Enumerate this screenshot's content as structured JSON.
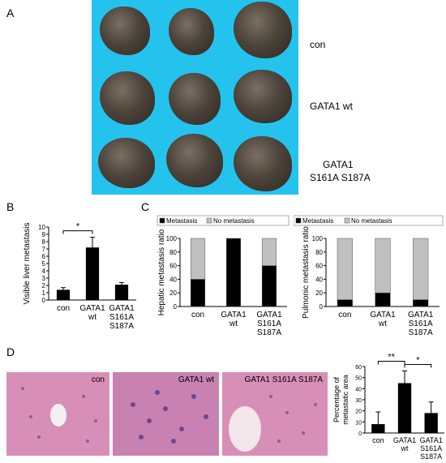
{
  "panels": {
    "A": "A",
    "B": "B",
    "C": "C",
    "D": "D"
  },
  "panelA": {
    "groups": [
      "con",
      "GATA1 wt",
      "GATA1",
      "S161A S187A"
    ]
  },
  "chart_data": [
    {
      "id": "B",
      "type": "bar",
      "ylabel": "Visible liver metastasis",
      "ylim": [
        0,
        10
      ],
      "yticks": [
        0,
        1,
        2,
        3,
        4,
        5,
        6,
        7,
        8,
        9,
        10
      ],
      "categories": [
        [
          "con"
        ],
        [
          "GATA1",
          "wt"
        ],
        [
          "GATA1",
          "S161A",
          "S187A"
        ]
      ],
      "values": [
        1.4,
        7.2,
        2.1
      ],
      "errors": [
        0.3,
        1.4,
        0.3
      ],
      "significance": [
        {
          "from": 0,
          "to": 1,
          "label": "*"
        }
      ]
    },
    {
      "id": "C1",
      "type": "bar",
      "stacked": true,
      "ylabel": "Hepatic metastasis ratio",
      "ylim": [
        0,
        100
      ],
      "yticks": [
        0,
        20,
        40,
        60,
        80,
        100
      ],
      "categories": [
        [
          "con"
        ],
        [
          "GATA1",
          "wt"
        ],
        [
          "GATA1",
          "S161A",
          "S187A"
        ]
      ],
      "legend": [
        "Metastasis",
        "No metastasis"
      ],
      "series": [
        {
          "name": "Metastasis",
          "values": [
            40,
            100,
            60
          ],
          "color": "#000000"
        },
        {
          "name": "No metastasis",
          "values": [
            60,
            0,
            40
          ],
          "color": "#c0c0c0"
        }
      ]
    },
    {
      "id": "C2",
      "type": "bar",
      "stacked": true,
      "ylabel": "Pulmonic metastasis ratio",
      "ylim": [
        0,
        100
      ],
      "yticks": [
        0,
        20,
        40,
        60,
        80,
        100
      ],
      "categories": [
        [
          "con"
        ],
        [
          "GATA1",
          "wt"
        ],
        [
          "GATA1",
          "S161A",
          "S187A"
        ]
      ],
      "legend": [
        "Metastasis",
        "No metastasis"
      ],
      "series": [
        {
          "name": "Metastasis",
          "values": [
            10,
            20,
            10
          ],
          "color": "#000000"
        },
        {
          "name": "No metastasis",
          "values": [
            90,
            80,
            90
          ],
          "color": "#c0c0c0"
        }
      ]
    },
    {
      "id": "D",
      "type": "bar",
      "ylabel": [
        "Percentage of",
        "metastatic area"
      ],
      "ylim": [
        0,
        60
      ],
      "yticks": [
        0,
        10,
        20,
        30,
        40,
        50,
        60
      ],
      "categories": [
        [
          "con"
        ],
        [
          "GATA1",
          "wt"
        ],
        [
          "GATA1",
          "S161A",
          "S187A"
        ]
      ],
      "values": [
        8,
        45,
        18
      ],
      "errors": [
        11,
        11,
        10
      ],
      "significance": [
        {
          "from": 0,
          "to": 1,
          "label": "**"
        },
        {
          "from": 1,
          "to": 2,
          "label": "*"
        }
      ]
    }
  ],
  "histology": [
    "con",
    "GATA1 wt",
    "GATA1 S161A S187A"
  ]
}
